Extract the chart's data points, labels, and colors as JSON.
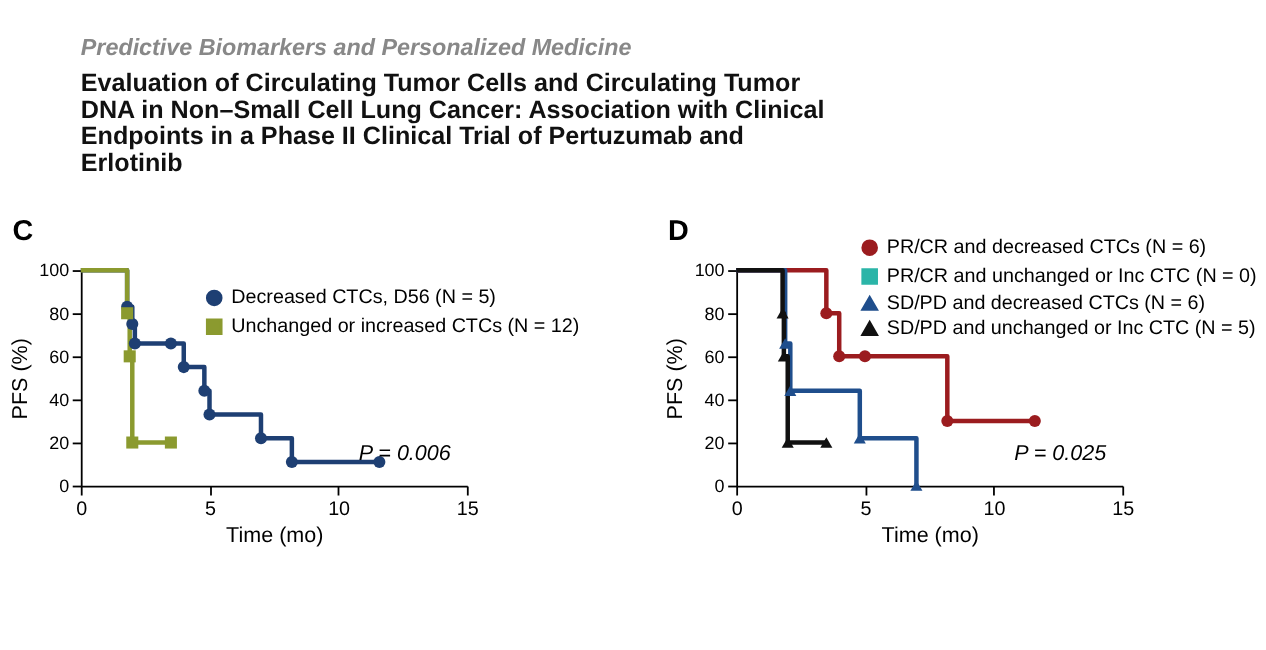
{
  "chart_data": [
    {
      "type": "step",
      "title": "Evaluation of Circulating Tumor Cells and Circulating Tumor DNA in Non–Small Cell Lung Cancer: Association with Clinical Endpoints in a Phase II Clinical Trial of Pertuzumab and Erlotinib",
      "subtitle": "Predictive Biomarkers and Personalized Medicine",
      "xlabel": "Time (mo)",
      "ylabel": "PFS (%)",
      "xlim": [
        0,
        15
      ],
      "xticks": [
        0,
        5,
        10,
        15
      ],
      "ylim": [
        0,
        100
      ],
      "yticks": [
        0,
        20,
        40,
        60,
        80,
        100
      ],
      "grid": false,
      "legend": "top right",
      "annotations": [
        "C",
        "P = 0.006"
      ],
      "series": [
        {
          "name": "Decreased CTCs, D56 (N = 5)",
          "color": "#1e3f73",
          "marker": "circle",
          "x": [
            0,
            1.8,
            2.0,
            2.1,
            3.5,
            4.0,
            4.8,
            5.0,
            7.0,
            8.2,
            11.6
          ],
          "values": [
            100,
            83,
            75,
            66,
            66,
            55,
            44,
            33,
            22,
            11,
            11
          ]
        },
        {
          "name": "Unchanged or increased CTCs (N = 12)",
          "color": "#8b9a2f",
          "marker": "square",
          "x": [
            0,
            1.8,
            1.9,
            2.0,
            3.5
          ],
          "values": [
            100,
            80,
            60,
            20,
            20
          ]
        }
      ]
    },
    {
      "type": "step",
      "xlabel": "Time (mo)",
      "ylabel": "PFS (%)",
      "xlim": [
        0,
        15
      ],
      "xticks": [
        0,
        5,
        10,
        15
      ],
      "ylim": [
        0,
        100
      ],
      "yticks": [
        0,
        20,
        40,
        60,
        80,
        100
      ],
      "grid": false,
      "legend": "top right",
      "annotations": [
        "D",
        "P = 0.025"
      ],
      "series": [
        {
          "name": "PR/CR and decreased CTCs (N = 6)",
          "color": "#9b1c1f",
          "marker": "circle",
          "x": [
            0,
            3.5,
            4.0,
            5.0,
            8.2,
            11.6
          ],
          "values": [
            100,
            80,
            60,
            60,
            30,
            30
          ]
        },
        {
          "name": "PR/CR and unchanged or Inc CTC (N = 0)",
          "color": "#2bb5a8",
          "marker": "square"
        },
        {
          "name": "SD/PD and decreased CTCs (N = 6)",
          "color": "#1f4e8c",
          "marker": "triangle",
          "x": [
            0,
            1.9,
            2.1,
            4.8,
            7.0
          ],
          "values": [
            100,
            66,
            44,
            22,
            0
          ]
        },
        {
          "name": "SD/PD and unchanged or Inc CTC (N = 5)",
          "color": "#111111",
          "marker": "triangle",
          "x": [
            0,
            1.8,
            1.85,
            2.0,
            3.5
          ],
          "values": [
            100,
            80,
            60,
            20,
            20
          ]
        }
      ]
    }
  ]
}
